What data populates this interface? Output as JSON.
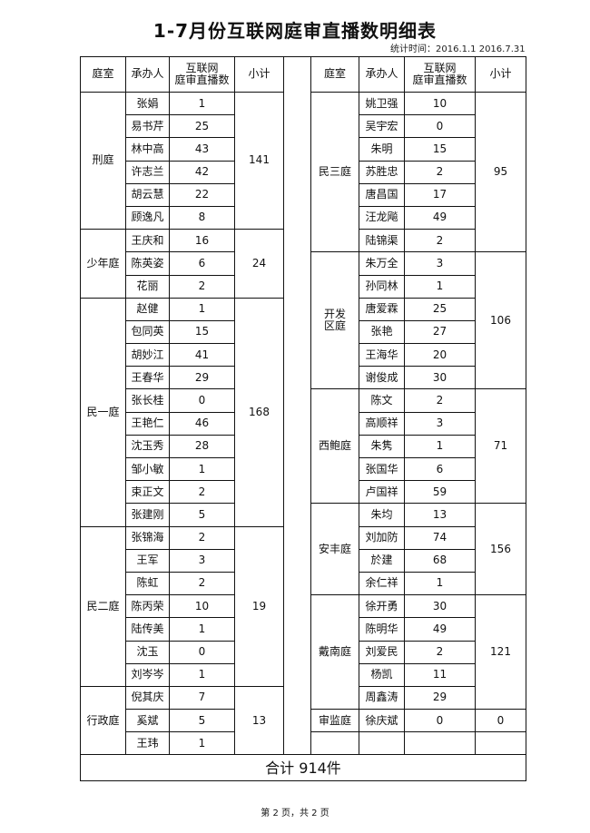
{
  "title": "1-7月份互联网庭审直播数明细表",
  "period": "统计时间：2016.1.1 2016.7.31",
  "headers": {
    "court": "庭室",
    "judge": "承办人",
    "count": "互联网\n庭审直播数",
    "subtotal": "小计"
  },
  "left_groups": [
    {
      "court": "刑庭",
      "subtotal": "141",
      "rows": [
        [
          "张娟",
          "1"
        ],
        [
          "易书芹",
          "25"
        ],
        [
          "林中高",
          "43"
        ],
        [
          "许志兰",
          "42"
        ],
        [
          "胡云慧",
          "22"
        ],
        [
          "顾逸凡",
          "8"
        ]
      ]
    },
    {
      "court": "少年庭",
      "subtotal": "24",
      "rows": [
        [
          "王庆和",
          "16"
        ],
        [
          "陈英姿",
          "6"
        ],
        [
          "花丽",
          "2"
        ]
      ]
    },
    {
      "court": "民一庭",
      "subtotal": "168",
      "rows": [
        [
          "赵健",
          "1"
        ],
        [
          "包同英",
          "15"
        ],
        [
          "胡妙江",
          "41"
        ],
        [
          "王春华",
          "29"
        ],
        [
          "张长桂",
          "0"
        ],
        [
          "王艳仁",
          "46"
        ],
        [
          "沈玉秀",
          "28"
        ],
        [
          "邹小敏",
          "1"
        ],
        [
          "束正文",
          "2"
        ],
        [
          "张建刚",
          "5"
        ]
      ]
    },
    {
      "court": "民二庭",
      "subtotal": "19",
      "rows": [
        [
          "张锦海",
          "2"
        ],
        [
          "王军",
          "3"
        ],
        [
          "陈虹",
          "2"
        ],
        [
          "陈丙荣",
          "10"
        ],
        [
          "陆传美",
          "1"
        ],
        [
          "沈玉",
          "0"
        ],
        [
          "刘岑岑",
          "1"
        ]
      ]
    },
    {
      "court": "行政庭",
      "subtotal": "13",
      "rows": [
        [
          "倪其庆",
          "7"
        ],
        [
          "奚斌",
          "5"
        ],
        [
          "王玮",
          "1"
        ]
      ]
    }
  ],
  "right_groups": [
    {
      "court": "民三庭",
      "subtotal": "95",
      "rows": [
        [
          "姚卫强",
          "10"
        ],
        [
          "吴宇宏",
          "0"
        ],
        [
          "朱明",
          "15"
        ],
        [
          "苏胜忠",
          "2"
        ],
        [
          "唐昌国",
          "17"
        ],
        [
          "汪龙飚",
          "49"
        ],
        [
          "陆锦渠",
          "2"
        ]
      ]
    },
    {
      "court": "开发\n区庭",
      "subtotal": "106",
      "rows": [
        [
          "朱万全",
          "3"
        ],
        [
          "孙同林",
          "1"
        ],
        [
          "唐爱霖",
          "25"
        ],
        [
          "张艳",
          "27"
        ],
        [
          "王海华",
          "20"
        ],
        [
          "谢俊成",
          "30"
        ]
      ]
    },
    {
      "court": "西鲍庭",
      "subtotal": "71",
      "rows": [
        [
          "陈文",
          "2"
        ],
        [
          "高顺祥",
          "3"
        ],
        [
          "朱隽",
          "1"
        ],
        [
          "张国华",
          "6"
        ],
        [
          "卢国祥",
          "59"
        ]
      ]
    },
    {
      "court": "安丰庭",
      "subtotal": "156",
      "rows": [
        [
          "朱均",
          "13"
        ],
        [
          "刘加防",
          "74"
        ],
        [
          "於建",
          "68"
        ],
        [
          "余仁祥",
          "1"
        ]
      ]
    },
    {
      "court": "戴南庭",
      "subtotal": "121",
      "rows": [
        [
          "徐开勇",
          "30"
        ],
        [
          "陈明华",
          "49"
        ],
        [
          "刘爱民",
          "2"
        ],
        [
          "杨凯",
          "11"
        ],
        [
          "周鑫涛",
          "29"
        ]
      ]
    },
    {
      "court": "审监庭",
      "subtotal": "0",
      "rows": [
        [
          "徐庆斌",
          "0"
        ]
      ]
    }
  ],
  "total": "合计   914件",
  "footer": "第 2 页，共 2 页"
}
